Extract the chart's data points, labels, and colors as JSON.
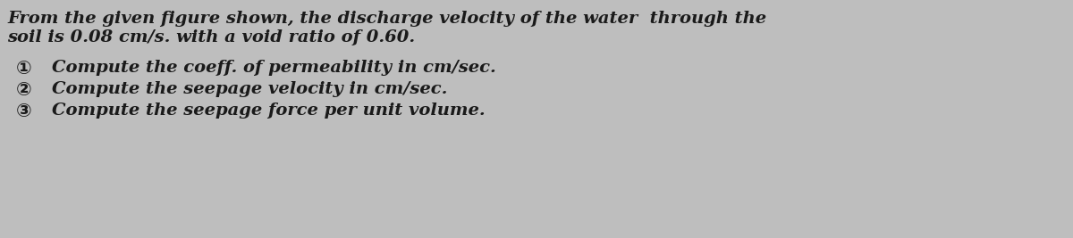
{
  "background_color": "#bebebe",
  "text_color": "#1a1a1a",
  "line1": "From the given figure shown, the discharge velocity of the water  through the",
  "line2": "soil is 0.08 cm/s. with a void ratio of 0.60.",
  "item1_circle": "①",
  "item2_circle": "②",
  "item3_circle": "③",
  "item1_text": "Compute the coeff. of permeability in cm/sec.",
  "item2_text": "Compute the seepage velocity in cm/sec.",
  "item3_text": "Compute the seepage force per unit volume.",
  "font_size_header": 14.0,
  "font_size_items": 14.0
}
